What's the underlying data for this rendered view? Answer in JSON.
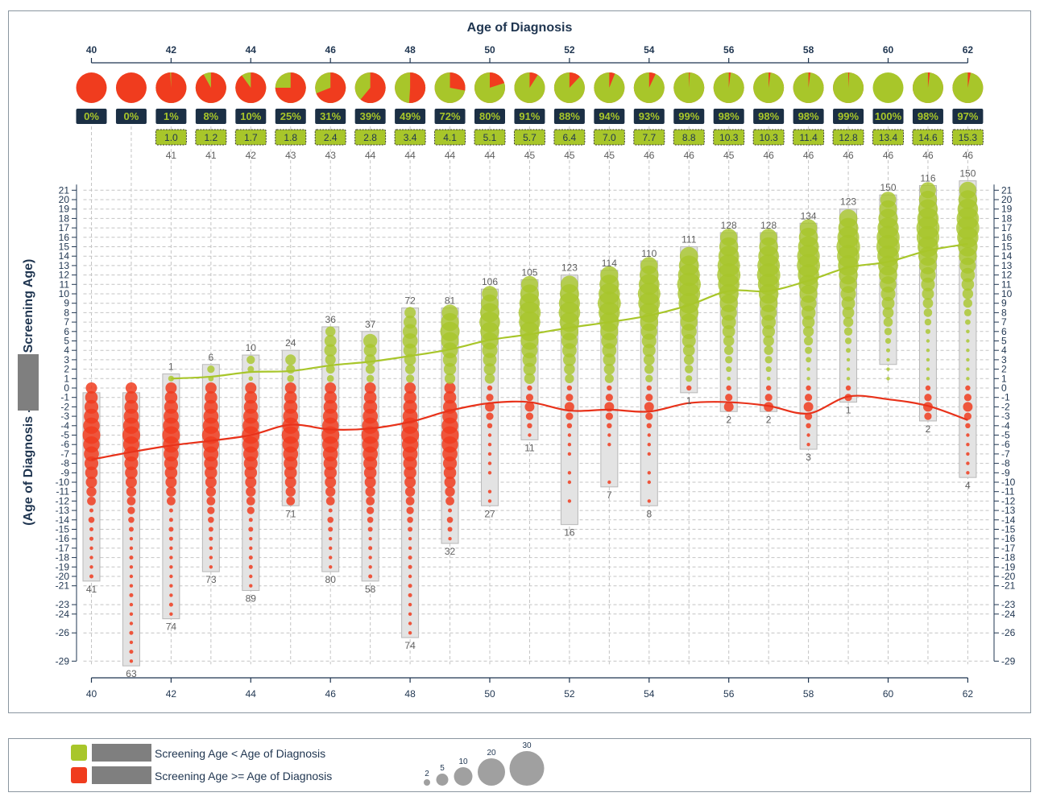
{
  "chart_data": {
    "type": "scatter",
    "title": "Age of Diagnosis",
    "ylabel_left": "(Age of Diagnosis - ",
    "ylabel_right": "Screening Age)",
    "x_range": [
      40,
      62
    ],
    "x_ticks": [
      40,
      42,
      44,
      46,
      48,
      50,
      52,
      54,
      56,
      58,
      60,
      62
    ],
    "y_ticks": [
      21,
      20,
      19,
      18,
      17,
      16,
      15,
      14,
      13,
      12,
      11,
      10,
      9,
      8,
      7,
      6,
      5,
      4,
      3,
      2,
      1,
      0,
      -1,
      -2,
      -3,
      -4,
      -5,
      -6,
      -7,
      -8,
      -9,
      -10,
      -11,
      -12,
      -13,
      -14,
      -15,
      -16,
      -17,
      -18,
      -19,
      -20,
      -21,
      -23,
      -24,
      -26,
      -29
    ],
    "colors": {
      "green": "#a8c62a",
      "red": "#f03c1e",
      "red_line": "#e8321a",
      "dark": "#1b2f44",
      "box": "#e3e3e3",
      "dots": "#9e9e9e"
    },
    "ages": [
      {
        "age": 40,
        "pct": "0%",
        "green": 0,
        "mean": null,
        "count": null,
        "top": null,
        "bottom": 41,
        "ymax": -0.5,
        "ymin": -20.5
      },
      {
        "age": 41,
        "pct": "0%",
        "green": 0,
        "mean": null,
        "count": null,
        "top": null,
        "bottom": 63,
        "ymax": -0.5,
        "ymin": -29.5
      },
      {
        "age": 42,
        "pct": "1%",
        "green": 0.01,
        "mean": "1.0",
        "count": 41,
        "top": 1,
        "bottom": 74,
        "ymax": 1.5,
        "ymin": -24.5
      },
      {
        "age": 43,
        "pct": "8%",
        "green": 0.08,
        "mean": "1.2",
        "count": 41,
        "top": 6,
        "bottom": 73,
        "ymax": 2.5,
        "ymin": -19.5
      },
      {
        "age": 44,
        "pct": "10%",
        "green": 0.1,
        "mean": "1.7",
        "count": 42,
        "top": 10,
        "bottom": 89,
        "ymax": 3.5,
        "ymin": -21.5
      },
      {
        "age": 45,
        "pct": "25%",
        "green": 0.25,
        "mean": "1.8",
        "count": 43,
        "top": 24,
        "bottom": 71,
        "ymax": 4,
        "ymin": -12.5
      },
      {
        "age": 46,
        "pct": "31%",
        "green": 0.31,
        "mean": "2.4",
        "count": 43,
        "top": 36,
        "bottom": 80,
        "ymax": 6.5,
        "ymin": -19.5
      },
      {
        "age": 47,
        "pct": "39%",
        "green": 0.39,
        "mean": "2.8",
        "count": 44,
        "top": 37,
        "bottom": 58,
        "ymax": 6,
        "ymin": -20.5
      },
      {
        "age": 48,
        "pct": "49%",
        "green": 0.49,
        "mean": "3.4",
        "count": 44,
        "top": 72,
        "bottom": 74,
        "ymax": 8.5,
        "ymin": -26.5
      },
      {
        "age": 49,
        "pct": "72%",
        "green": 0.72,
        "mean": "4.1",
        "count": 44,
        "top": 81,
        "bottom": 32,
        "ymax": 8.5,
        "ymin": -16.5
      },
      {
        "age": 50,
        "pct": "80%",
        "green": 0.8,
        "mean": "5.1",
        "count": 44,
        "top": 106,
        "bottom": 27,
        "ymax": 10.5,
        "ymin": -12.5
      },
      {
        "age": 51,
        "pct": "91%",
        "green": 0.91,
        "mean": "5.7",
        "count": 45,
        "top": 105,
        "bottom": 11,
        "ymax": 11.5,
        "ymin": -5.5
      },
      {
        "age": 52,
        "pct": "88%",
        "green": 0.88,
        "mean": "6.4",
        "count": 45,
        "top": 123,
        "bottom": 16,
        "ymax": 12,
        "ymin": -14.5
      },
      {
        "age": 53,
        "pct": "94%",
        "green": 0.94,
        "mean": "7.0",
        "count": 45,
        "top": 114,
        "bottom": 7,
        "ymax": 12.5,
        "ymin": -10.5
      },
      {
        "age": 54,
        "pct": "93%",
        "green": 0.93,
        "mean": "7.7",
        "count": 46,
        "top": 110,
        "bottom": 8,
        "ymax": 13.5,
        "ymin": -12.5
      },
      {
        "age": 55,
        "pct": "99%",
        "green": 0.99,
        "mean": "8.8",
        "count": 46,
        "top": 111,
        "bottom": 1,
        "ymax": 15,
        "ymin": -0.5
      },
      {
        "age": 56,
        "pct": "98%",
        "green": 0.98,
        "mean": "10.3",
        "count": 45,
        "top": 128,
        "bottom": 2,
        "ymax": 16.5,
        "ymin": -2.5
      },
      {
        "age": 57,
        "pct": "98%",
        "green": 0.98,
        "mean": "10.3",
        "count": 46,
        "top": 128,
        "bottom": 2,
        "ymax": 16.5,
        "ymin": -2.5
      },
      {
        "age": 58,
        "pct": "98%",
        "green": 0.98,
        "mean": "11.4",
        "count": 46,
        "top": 134,
        "bottom": 3,
        "ymax": 17.5,
        "ymin": -6.5
      },
      {
        "age": 59,
        "pct": "99%",
        "green": 0.99,
        "mean": "12.8",
        "count": 46,
        "top": 123,
        "bottom": 1,
        "ymax": 19,
        "ymin": -1.5
      },
      {
        "age": 60,
        "pct": "100%",
        "green": 1.0,
        "mean": "13.4",
        "count": 46,
        "top": 150,
        "bottom": null,
        "ymax": 20.5,
        "ymin": 2.5
      },
      {
        "age": 61,
        "pct": "98%",
        "green": 0.98,
        "mean": "14.6",
        "count": 46,
        "top": 116,
        "bottom": 2,
        "ymax": 21.5,
        "ymin": -3.5
      },
      {
        "age": 62,
        "pct": "97%",
        "green": 0.97,
        "mean": "15.3",
        "count": 46,
        "top": 150,
        "bottom": 4,
        "ymax": 22,
        "ymin": -9.5
      }
    ],
    "green_line": [
      [
        42,
        1.0
      ],
      [
        43,
        1.2
      ],
      [
        44,
        1.7
      ],
      [
        45,
        1.8
      ],
      [
        46,
        2.4
      ],
      [
        47,
        2.8
      ],
      [
        48,
        3.4
      ],
      [
        49,
        4.1
      ],
      [
        50,
        5.1
      ],
      [
        51,
        5.7
      ],
      [
        52,
        6.4
      ],
      [
        53,
        7.0
      ],
      [
        54,
        7.7
      ],
      [
        55,
        8.8
      ],
      [
        56,
        10.3
      ],
      [
        57,
        10.3
      ],
      [
        58,
        11.4
      ],
      [
        59,
        12.8
      ],
      [
        60,
        13.4
      ],
      [
        61,
        14.6
      ],
      [
        62,
        15.3
      ]
    ],
    "red_line": [
      [
        40,
        -7.6
      ],
      [
        41,
        -6.8
      ],
      [
        42,
        -6.1
      ],
      [
        43,
        -5.6
      ],
      [
        44,
        -5.0
      ],
      [
        45,
        -3.9
      ],
      [
        46,
        -4.4
      ],
      [
        47,
        -4.3
      ],
      [
        48,
        -3.6
      ],
      [
        49,
        -2.4
      ],
      [
        50,
        -1.6
      ],
      [
        51,
        -1.5
      ],
      [
        52,
        -2.4
      ],
      [
        53,
        -2.3
      ],
      [
        54,
        -2.5
      ],
      [
        55,
        -1.6
      ],
      [
        56,
        -1.5
      ],
      [
        57,
        -1.9
      ],
      [
        58,
        -2.7
      ],
      [
        59,
        -0.9
      ],
      [
        60,
        -1.2
      ],
      [
        61,
        -1.9
      ],
      [
        62,
        -3.4
      ]
    ]
  },
  "legend": {
    "green_label": "Screening Age < Age of Diagnosis",
    "red_label": "Screening Age >= Age of Diagnosis",
    "size_title_values": [
      "2",
      "5",
      "10",
      "20",
      "30"
    ]
  }
}
